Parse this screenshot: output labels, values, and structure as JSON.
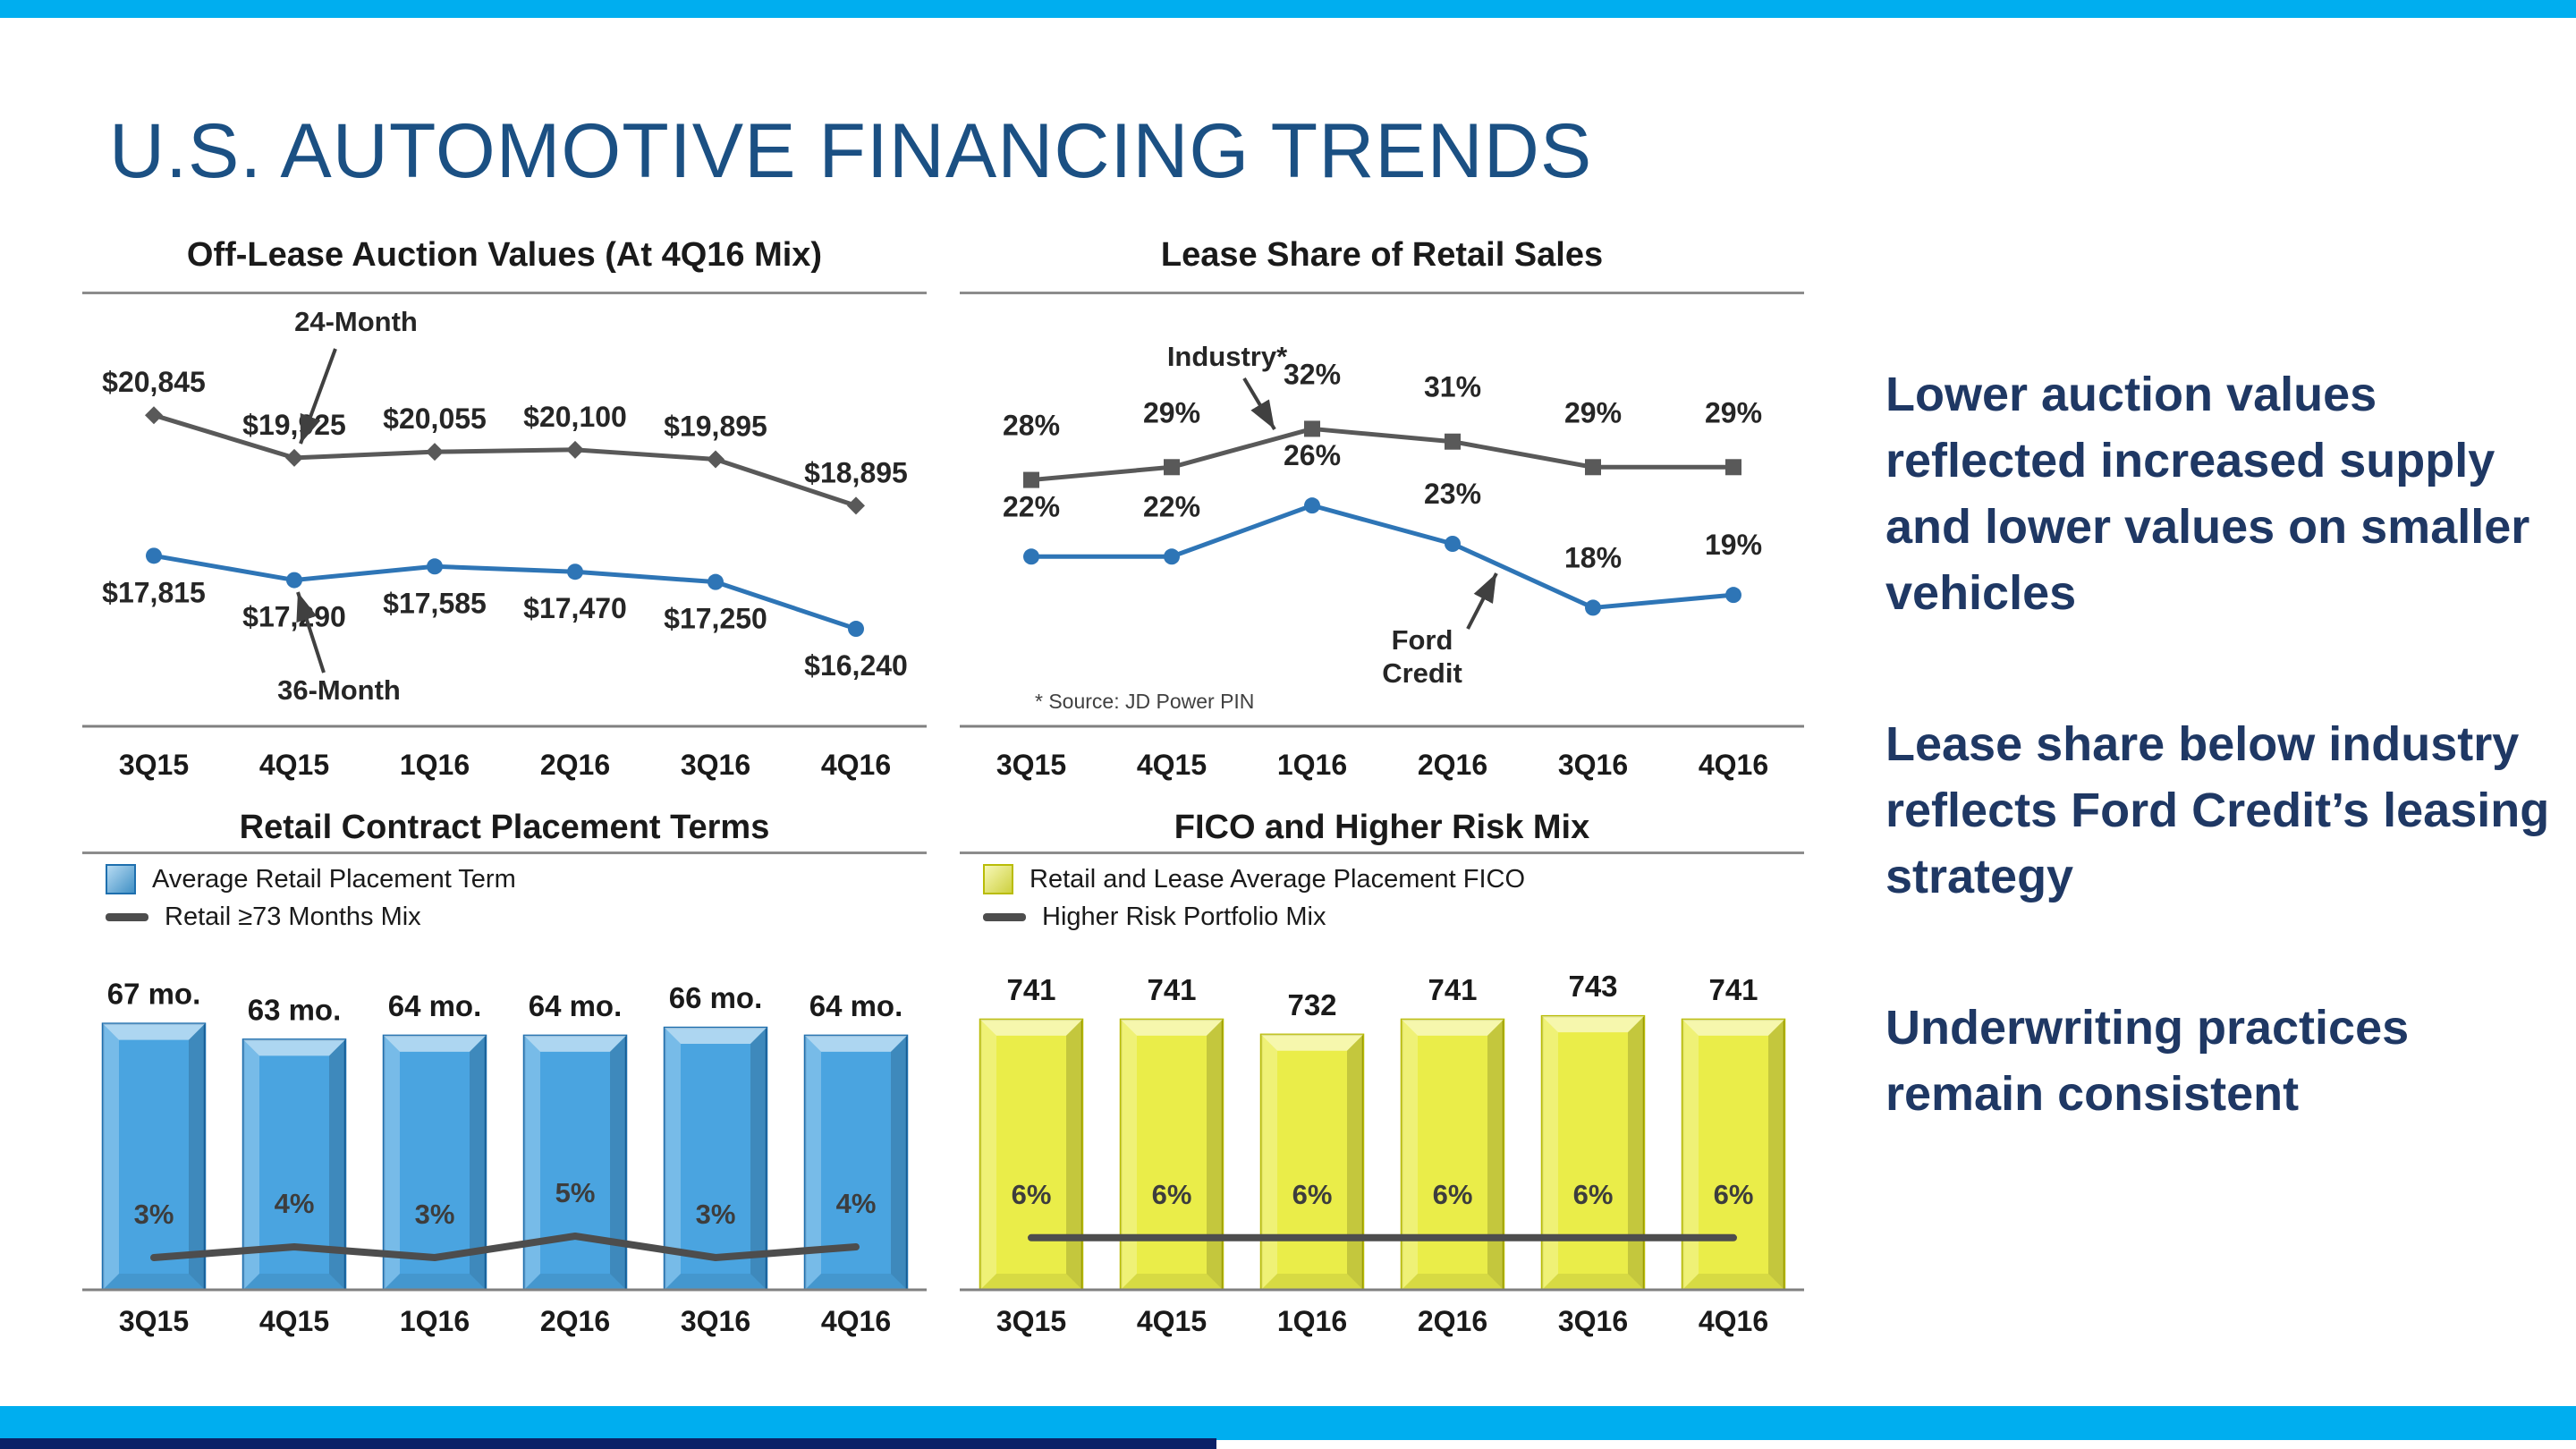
{
  "slide": {
    "title": "U.S. AUTOMOTIVE FINANCING TRENDS",
    "accent_color": "#00AEEF",
    "footer_color": "#0A2167",
    "title_color": "#1B5083",
    "bullet_color": "#1F3864"
  },
  "bullets": [
    "Lower auction values reflected increased supply and lower values on smaller vehicles",
    "Lease share below industry reflects Ford Credit’s leasing strategy",
    "Underwriting practices remain consistent"
  ],
  "chart_data": [
    {
      "id": "off-lease-auction-values",
      "type": "line",
      "title": "Off-Lease Auction Values (At 4Q16 Mix)",
      "categories": [
        "3Q15",
        "4Q15",
        "1Q16",
        "2Q16",
        "3Q16",
        "4Q16"
      ],
      "ylim": [
        15180,
        21350
      ],
      "plot_y": [
        180,
        500
      ],
      "series": [
        {
          "name": "24-Month",
          "marker": "diamond",
          "color": "#595959",
          "label_dy": -26,
          "values": [
            20845,
            19925,
            20055,
            20100,
            19895,
            18895
          ],
          "labels": [
            "$20,845",
            "$19,925",
            "$20,055",
            "$20,100",
            "$19,895",
            "$18,895"
          ]
        },
        {
          "name": "36-Month",
          "marker": "circle",
          "color": "#2E75B6",
          "label_dy": 52,
          "values": [
            17815,
            17290,
            17585,
            17470,
            17250,
            16240
          ],
          "labels": [
            "$17,815",
            "$17,290",
            "$17,585",
            "$17,470",
            "$17,250",
            "$16,240"
          ]
        }
      ],
      "annotations": [
        {
          "text": [
            "24-Month"
          ],
          "tx": 306,
          "ty": 112,
          "sx": 283,
          "sy": 132,
          "ax": 244,
          "ay": 238
        },
        {
          "text": [
            "36-Month"
          ],
          "tx": 287,
          "ty": 524,
          "sx": 270,
          "sy": 494,
          "ax": 241,
          "ay": 404
        }
      ]
    },
    {
      "id": "lease-share-of-retail-sales",
      "type": "line",
      "title": "Lease Share of Retail Sales",
      "categories": [
        "3Q15",
        "4Q15",
        "1Q16",
        "2Q16",
        "3Q16",
        "4Q16"
      ],
      "ylim": [
        12.5,
        33.5
      ],
      "plot_y": [
        200,
        500
      ],
      "series": [
        {
          "name": "Industry",
          "marker": "square",
          "color": "#595959",
          "label_dy": -50,
          "values": [
            28,
            29,
            32,
            31,
            29,
            29
          ],
          "labels": [
            "28%",
            "29%",
            "32%",
            "31%",
            "29%",
            "29%"
          ]
        },
        {
          "name": "Ford Credit",
          "marker": "circle",
          "color": "#2E75B6",
          "label_dy": -45,
          "values": [
            22,
            22,
            26,
            23,
            18,
            19
          ],
          "labels": [
            "22%",
            "22%",
            "26%",
            "23%",
            "18%",
            "19%"
          ]
        }
      ],
      "annotations": [
        {
          "text": [
            "Industry*"
          ],
          "tx": 299,
          "ty": 151,
          "sx": 318,
          "sy": 165,
          "ax": 352,
          "ay": 222
        },
        {
          "text": [
            "Ford",
            "Credit"
          ],
          "tx": 517,
          "ty": 468,
          "line_h": 37,
          "sx": 568,
          "sy": 445,
          "ax": 600,
          "ay": 383
        }
      ],
      "footnote": "*   Source: JD Power PIN"
    },
    {
      "id": "retail-contract-placement-terms",
      "type": "bar",
      "title": "Retail Contract Placement Terms",
      "categories": [
        "3Q15",
        "4Q15",
        "1Q16",
        "2Q16",
        "3Q16",
        "4Q16"
      ],
      "legend": [
        {
          "label": "Average Retail Placement Term",
          "swatch": "bar"
        },
        {
          "label": "Retail ≥73 Months Mix",
          "swatch": "line"
        }
      ],
      "bars": {
        "values": [
          67,
          63,
          64,
          64,
          66,
          64
        ],
        "labels": [
          "67 mo.",
          "63 mo.",
          "64 mo.",
          "64 mo.",
          "66 mo.",
          "64 mo."
        ],
        "color": "#4AA4E0",
        "edge": "#1E6FAE"
      },
      "ylim": [
        0,
        82
      ],
      "line": {
        "values": [
          3,
          4,
          3,
          5,
          3,
          4
        ],
        "labels": [
          "3%",
          "4%",
          "3%",
          "5%",
          "3%",
          "4%"
        ],
        "color": "#4D4D4D",
        "scale": 12
      }
    },
    {
      "id": "fico-and-higher-risk-mix",
      "type": "bar",
      "title": "FICO and Higher Risk Mix",
      "categories": [
        "3Q15",
        "4Q15",
        "1Q16",
        "2Q16",
        "3Q16",
        "4Q16"
      ],
      "legend": [
        {
          "label": "Retail and Lease Average Placement FICO",
          "swatch": "bar"
        },
        {
          "label": "Higher Risk Portfolio Mix",
          "swatch": "line"
        }
      ],
      "bars": {
        "values": [
          741,
          741,
          732,
          741,
          743,
          741
        ],
        "labels": [
          "741",
          "741",
          "732",
          "741",
          "743",
          "741"
        ],
        "color": "#EAED49",
        "edge": "#B9BC07"
      },
      "ylim": [
        580,
        774
      ],
      "line": {
        "values": [
          6,
          6,
          6,
          6,
          6,
          6
        ],
        "labels": [
          "6%",
          "6%",
          "6%",
          "6%",
          "6%",
          "6%"
        ],
        "color": "#4D4D4D",
        "scale": 9.7
      }
    }
  ]
}
